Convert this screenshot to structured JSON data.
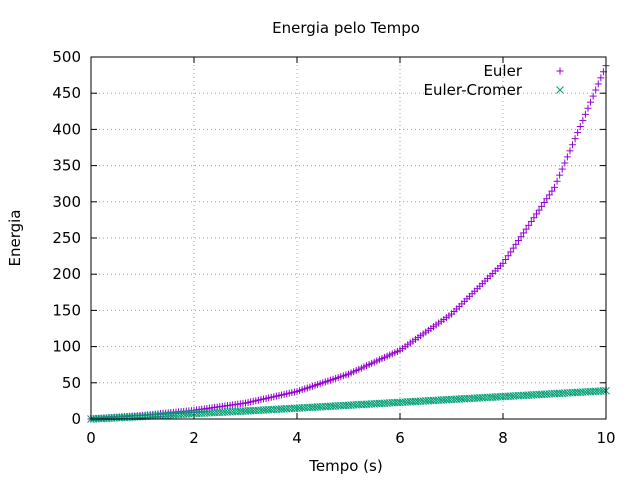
{
  "chart_data": {
    "type": "scatter",
    "title": "Energia pelo Tempo",
    "xlabel": "Tempo (s)",
    "ylabel": "Energia",
    "xlim": [
      0,
      10
    ],
    "ylim": [
      0,
      500
    ],
    "x_ticks": [
      "0",
      "2",
      "4",
      "6",
      "8",
      "10"
    ],
    "y_ticks": [
      "0",
      "50",
      "100",
      "150",
      "200",
      "250",
      "300",
      "350",
      "400",
      "450",
      "500"
    ],
    "grid": true,
    "legend_position": "top-right",
    "x_step": 0.05,
    "series": [
      {
        "name": "Euler",
        "marker": "+",
        "color": "#9400d3",
        "x": [
          0,
          1,
          2,
          3,
          4,
          5,
          6,
          7,
          8,
          9,
          10
        ],
        "y": [
          0,
          5,
          12,
          22,
          38,
          62,
          95,
          145,
          215,
          320,
          488
        ]
      },
      {
        "name": "Euler-Cromer",
        "marker": "x",
        "color": "#009e73",
        "x": [
          0,
          1,
          2,
          3,
          4,
          5,
          6,
          7,
          8,
          9,
          10
        ],
        "y": [
          0,
          3.5,
          7.5,
          11,
          15,
          19,
          23,
          27,
          31,
          35,
          39
        ]
      }
    ]
  }
}
